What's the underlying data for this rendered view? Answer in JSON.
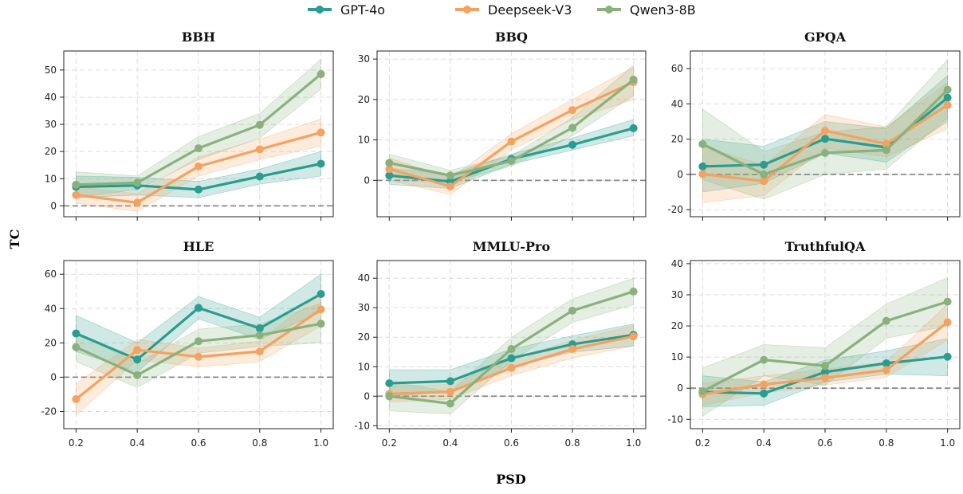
{
  "figure": {
    "xlabel": "PSD",
    "ylabel": "TC"
  },
  "legend": {
    "placement": "top-center",
    "entries": [
      {
        "name": "GPT-4o",
        "color": "#2a9d8f"
      },
      {
        "name": "Deepseek-V3",
        "color": "#f4a261"
      },
      {
        "name": "Qwen3-8B",
        "color": "#8ab17d"
      }
    ]
  },
  "chart_data": [
    {
      "type": "line",
      "title": "BBH",
      "x": [
        0.2,
        0.4,
        0.6,
        0.8,
        1.0
      ],
      "xticks": [
        "0.2",
        "0.4",
        "0.6",
        "0.8",
        "1.0"
      ],
      "ylim": [
        -4,
        57
      ],
      "yticks": [
        0,
        10,
        20,
        30,
        40,
        50
      ],
      "grid": true,
      "reference_line": 0,
      "series": [
        {
          "name": "GPT-4o",
          "values": [
            7,
            7.5,
            6,
            10.8,
            15.5
          ],
          "lower": [
            3,
            4,
            3,
            8,
            11
          ],
          "upper": [
            11,
            10.5,
            9,
            13.5,
            20
          ]
        },
        {
          "name": "Deepseek-V3",
          "values": [
            4,
            1.2,
            14.5,
            20.8,
            27
          ],
          "lower": [
            1,
            -2,
            11,
            17,
            22
          ],
          "upper": [
            7,
            4.5,
            18,
            24.5,
            32
          ]
        },
        {
          "name": "Qwen3-8B",
          "values": [
            7.8,
            8.5,
            21.2,
            29.8,
            48.5
          ],
          "lower": [
            3,
            6,
            17,
            25,
            43
          ],
          "upper": [
            12.5,
            11,
            25.5,
            34,
            54
          ]
        }
      ]
    },
    {
      "type": "line",
      "title": "BBQ",
      "x": [
        0.2,
        0.4,
        0.6,
        0.8,
        1.0
      ],
      "xticks": [
        "0.2",
        "0.4",
        "0.6",
        "0.8",
        "1.0"
      ],
      "ylim": [
        -9,
        32
      ],
      "yticks": [
        0,
        10,
        20,
        30
      ],
      "grid": true,
      "reference_line": 0,
      "series": [
        {
          "name": "GPT-4o",
          "values": [
            1.2,
            -0.3,
            5.3,
            8.8,
            12.9
          ],
          "lower": [
            -1,
            -2,
            4,
            7.5,
            11
          ],
          "upper": [
            3,
            1.5,
            6.5,
            10.5,
            15
          ]
        },
        {
          "name": "Deepseek-V3",
          "values": [
            2.8,
            -1.5,
            9.6,
            17.4,
            24.3
          ],
          "lower": [
            0,
            -3.5,
            7.5,
            15,
            20
          ],
          "upper": [
            5.5,
            0.5,
            11.5,
            20,
            28
          ]
        },
        {
          "name": "Qwen3-8B",
          "values": [
            4.3,
            1.2,
            4.8,
            13,
            24.9
          ],
          "lower": [
            1.5,
            -0.5,
            3.5,
            11,
            21
          ],
          "upper": [
            6.5,
            2.5,
            6,
            15.5,
            28.5
          ]
        }
      ]
    },
    {
      "type": "line",
      "title": "GPQA",
      "x": [
        0.2,
        0.4,
        0.6,
        0.8,
        1.0
      ],
      "xticks": [
        "0.2",
        "0.4",
        "0.6",
        "0.8",
        "1.0"
      ],
      "ylim": [
        -24,
        70
      ],
      "yticks": [
        -20,
        0,
        20,
        40,
        60
      ],
      "grid": true,
      "reference_line": 0,
      "series": [
        {
          "name": "GPT-4o",
          "values": [
            4.5,
            5.5,
            20.2,
            15.3,
            43.5
          ],
          "lower": [
            -10,
            -5,
            12,
            7,
            30
          ],
          "upper": [
            20,
            16,
            30,
            26,
            56
          ]
        },
        {
          "name": "Deepseek-V3",
          "values": [
            0.2,
            -3.8,
            24.8,
            17.3,
            39.3
          ],
          "lower": [
            -16,
            -12,
            15,
            10,
            26
          ],
          "upper": [
            16,
            5,
            34,
            27,
            52
          ]
        },
        {
          "name": "Qwen3-8B",
          "values": [
            17.2,
            0,
            12.2,
            13.8,
            48
          ],
          "lower": [
            -3,
            -14,
            0,
            3,
            32
          ],
          "upper": [
            37,
            13,
            24,
            27,
            65
          ]
        }
      ]
    },
    {
      "type": "line",
      "title": "HLE",
      "x": [
        0.2,
        0.4,
        0.6,
        0.8,
        1.0
      ],
      "xticks": [
        "0.2",
        "0.4",
        "0.6",
        "0.8",
        "1.0"
      ],
      "ylim": [
        -30,
        68
      ],
      "yticks": [
        -20,
        0,
        20,
        40,
        60
      ],
      "grid": true,
      "reference_line": 0,
      "series": [
        {
          "name": "GPT-4o",
          "values": [
            25.5,
            10.3,
            40.4,
            28.5,
            48.5
          ],
          "lower": [
            15,
            3,
            34,
            22,
            38
          ],
          "upper": [
            36,
            20,
            47,
            35,
            60
          ]
        },
        {
          "name": "Deepseek-V3",
          "values": [
            -12.8,
            15.9,
            11.9,
            15,
            39.5
          ],
          "lower": [
            -22,
            10,
            6,
            9,
            30
          ],
          "upper": [
            -4,
            22,
            17,
            21,
            49
          ]
        },
        {
          "name": "Qwen3-8B",
          "values": [
            17.5,
            1.2,
            21,
            24.5,
            31.2
          ],
          "lower": [
            9,
            -6,
            14,
            18,
            20
          ],
          "upper": [
            26,
            8,
            28,
            31,
            43
          ]
        }
      ]
    },
    {
      "type": "line",
      "title": "MMLU-Pro",
      "x": [
        0.2,
        0.4,
        0.6,
        0.8,
        1.0
      ],
      "xticks": [
        "0.2",
        "0.4",
        "0.6",
        "0.8",
        "1.0"
      ],
      "ylim": [
        -11,
        46
      ],
      "yticks": [
        -10,
        0,
        10,
        20,
        30,
        40
      ],
      "grid": true,
      "reference_line": 0,
      "series": [
        {
          "name": "GPT-4o",
          "values": [
            4.4,
            5.1,
            12.9,
            17.6,
            20.8
          ],
          "lower": [
            0,
            1.5,
            10,
            15,
            17
          ],
          "upper": [
            9,
            9,
            16,
            20.5,
            24.5
          ]
        },
        {
          "name": "Deepseek-V3",
          "values": [
            0.8,
            1.5,
            9.6,
            16,
            20.3
          ],
          "lower": [
            -2,
            -1,
            7,
            13,
            17
          ],
          "upper": [
            3.5,
            4,
            12.5,
            19,
            24
          ]
        },
        {
          "name": "Qwen3-8B",
          "values": [
            0,
            -2.5,
            16,
            29,
            35.5
          ],
          "lower": [
            -5,
            -6,
            12,
            25,
            31
          ],
          "upper": [
            5,
            1.5,
            20,
            33,
            40
          ]
        }
      ]
    },
    {
      "type": "line",
      "title": "TruthfulQA",
      "x": [
        0.2,
        0.4,
        0.6,
        0.8,
        1.0
      ],
      "xticks": [
        "0.2",
        "0.4",
        "0.6",
        "0.8",
        "1.0"
      ],
      "ylim": [
        -13,
        41
      ],
      "yticks": [
        -10,
        0,
        10,
        20,
        30,
        40
      ],
      "grid": true,
      "reference_line": 0,
      "series": [
        {
          "name": "GPT-4o",
          "values": [
            -1.2,
            -1.7,
            5.2,
            8,
            10.1
          ],
          "lower": [
            -6,
            -5.5,
            2,
            4.5,
            4
          ],
          "upper": [
            4,
            2,
            9,
            12,
            16
          ]
        },
        {
          "name": "Deepseek-V3",
          "values": [
            -2,
            1.2,
            3.3,
            5.8,
            21.2
          ],
          "lower": [
            -5.5,
            -1.5,
            1,
            3.5,
            15.5
          ],
          "upper": [
            1.5,
            4,
            6,
            8.5,
            27
          ]
        },
        {
          "name": "Qwen3-8B",
          "values": [
            -1,
            9.1,
            7.2,
            21.6,
            27.8
          ],
          "lower": [
            -9,
            4,
            1,
            16,
            20
          ],
          "upper": [
            6.5,
            14,
            13,
            27,
            35.5
          ]
        }
      ]
    }
  ]
}
